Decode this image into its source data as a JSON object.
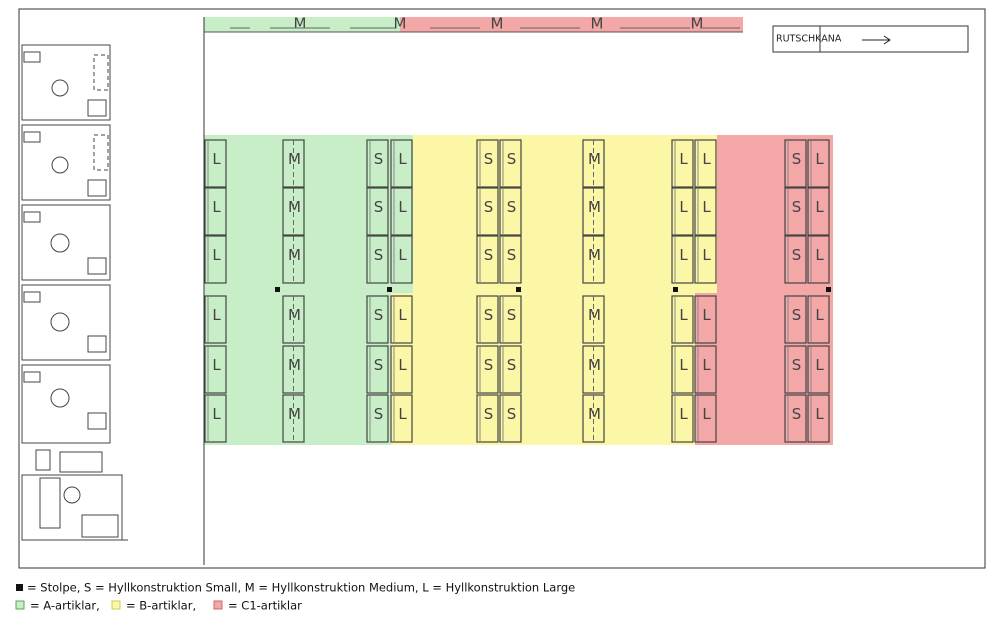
{
  "top_strip": [
    "M",
    "M",
    "M",
    "M",
    "M"
  ],
  "chute": "RUTSCHKANA",
  "shelves": [
    {
      "rows": [
        "L",
        "L",
        "L",
        "L",
        "L",
        "L"
      ]
    },
    {
      "rows": [
        "M",
        "M",
        "M",
        "M",
        "M",
        "M"
      ]
    },
    {
      "rows": [
        "S",
        "S",
        "S",
        "S",
        "S",
        "S"
      ]
    },
    {
      "rows": [
        "L",
        "L",
        "L",
        "L",
        "L",
        "L"
      ]
    },
    {
      "rows": [
        "S",
        "S",
        "S",
        "S",
        "S",
        "S"
      ]
    },
    {
      "rows": [
        "S",
        "S",
        "S",
        "S",
        "S",
        "S"
      ]
    },
    {
      "rows": [
        "M",
        "M",
        "M",
        "M",
        "M",
        "M"
      ]
    },
    {
      "rows": [
        "L",
        "L",
        "L",
        "L",
        "L",
        "L"
      ]
    },
    {
      "rows": [
        "L",
        "L",
        "L",
        "L",
        "L",
        "L"
      ]
    },
    {
      "rows": [
        "S",
        "S",
        "S",
        "S",
        "S",
        "S"
      ]
    },
    {
      "rows": [
        "L",
        "L",
        "L",
        "L",
        "L",
        "L"
      ]
    }
  ],
  "legend": {
    "line1": "= Stolpe, S = Hyllkonstruktion Small, M = Hyllkonstruktion Medium, L = Hyllkonstruktion Large",
    "a": "= A-artiklar,",
    "b": "= B-artiklar,",
    "c": "= C1-artiklar"
  }
}
